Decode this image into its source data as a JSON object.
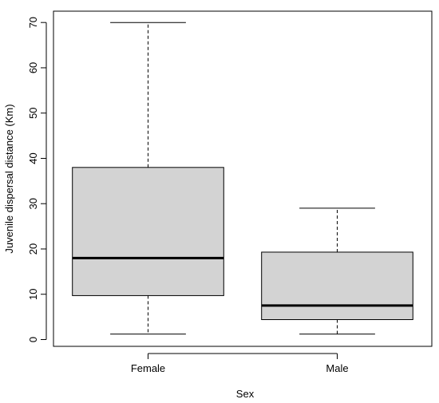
{
  "chart_data": {
    "type": "box",
    "title": "",
    "xlabel": "Sex",
    "ylabel": "Juvenile dispersal distance (Km)",
    "ylim": [
      -1.5,
      72.5
    ],
    "yticks": [
      0,
      10,
      20,
      30,
      40,
      50,
      60,
      70
    ],
    "categories": [
      "Female",
      "Male"
    ],
    "boxes": [
      {
        "name": "Female",
        "min": 1.2,
        "q1": 9.7,
        "median": 18,
        "q3": 38,
        "max": 70
      },
      {
        "name": "Male",
        "min": 1.2,
        "q1": 4.4,
        "median": 7.5,
        "q3": 19.3,
        "max": 29
      }
    ],
    "colors": {
      "box_fill": "#d3d3d3",
      "stroke": "#000000"
    },
    "grid": false,
    "legend": "none"
  }
}
